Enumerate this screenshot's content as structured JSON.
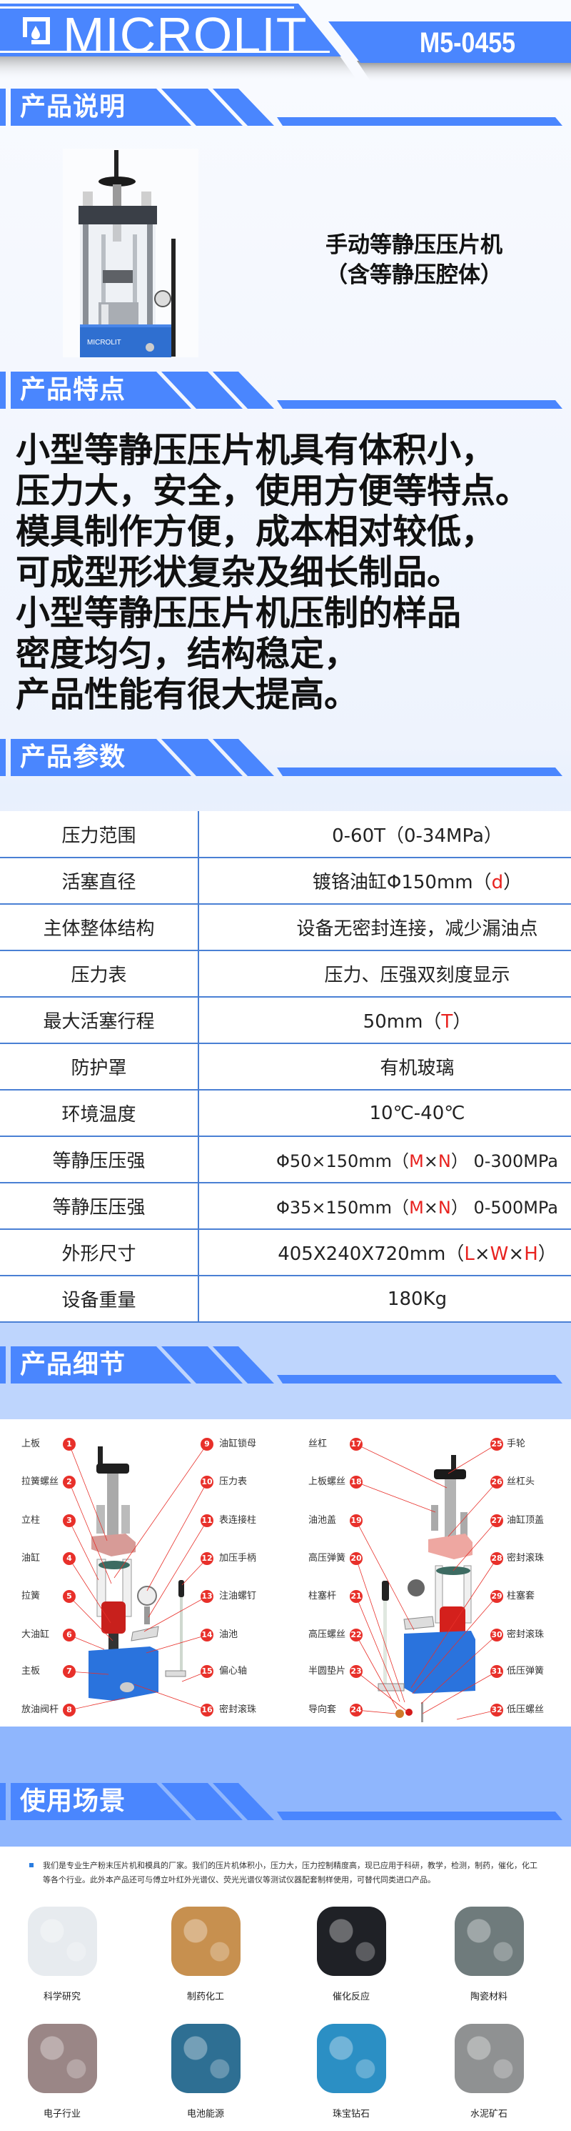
{
  "header": {
    "brand": "MICROLIT",
    "model": "M5-0455"
  },
  "colors": {
    "accent": "#4a86fe",
    "band_light": "#bed5fd",
    "band_usage": "#8fb6fd",
    "highlight": "#e8221f"
  },
  "sections": {
    "description": "产品说明",
    "features": "产品特点",
    "parameters": "产品参数",
    "details": "产品细节",
    "usage": "使用场景"
  },
  "description": {
    "product_logo": "MICROLIT",
    "title_line1": "手动等静压压片机",
    "title_line2": "（含等静压腔体）"
  },
  "features": [
    "小型等静压压片机具有体积小，",
    "压力大，安全，使用方便等特点。",
    "模具制作方便，成本相对较低，",
    "可成型形状复杂及细长制品。",
    "小型等静压压片机压制的样品",
    "密度均匀，结构稳定，",
    "产品性能有很大提高。"
  ],
  "parameters": [
    {
      "label": "压力范围",
      "value": [
        {
          "t": "0-60T（0-34MPa）"
        }
      ]
    },
    {
      "label": "活塞直径",
      "value": [
        {
          "t": "镀铬油缸Φ150mm（"
        },
        {
          "t": "d",
          "red": true
        },
        {
          "t": "）"
        }
      ]
    },
    {
      "label": "主体整体结构",
      "value": [
        {
          "t": "设备无密封连接，减少漏油点"
        }
      ]
    },
    {
      "label": "压力表",
      "value": [
        {
          "t": "压力、压强双刻度显示"
        }
      ]
    },
    {
      "label": "最大活塞行程",
      "value": [
        {
          "t": "50mm（"
        },
        {
          "t": "T",
          "red": true
        },
        {
          "t": "）"
        }
      ]
    },
    {
      "label": "防护罩",
      "value": [
        {
          "t": "有机玻璃"
        }
      ]
    },
    {
      "label": "环境温度",
      "value": [
        {
          "t": "10℃-40℃"
        }
      ]
    },
    {
      "label": "等静压压强",
      "value": [
        {
          "t": "Φ50×150mm（"
        },
        {
          "t": "M",
          "red": true
        },
        {
          "t": "×"
        },
        {
          "t": "N",
          "red": true
        },
        {
          "t": "）  0-300MPa"
        }
      ]
    },
    {
      "label": "等静压压强",
      "value": [
        {
          "t": "Φ35×150mm（"
        },
        {
          "t": "M",
          "red": true
        },
        {
          "t": "×"
        },
        {
          "t": "N",
          "red": true
        },
        {
          "t": "）  0-500MPa"
        }
      ]
    },
    {
      "label": "外形尺寸",
      "value": [
        {
          "t": "405X240X720mm（"
        },
        {
          "t": "L",
          "red": true
        },
        {
          "t": "×"
        },
        {
          "t": "W",
          "red": true
        },
        {
          "t": "×"
        },
        {
          "t": "H",
          "red": true
        },
        {
          "t": "）"
        }
      ]
    },
    {
      "label": "设备重量",
      "value": [
        {
          "t": "180Kg"
        }
      ]
    }
  ],
  "parts_left": [
    {
      "n": "1",
      "name": "上板"
    },
    {
      "n": "2",
      "name": "拉簧螺丝"
    },
    {
      "n": "3",
      "name": "立柱"
    },
    {
      "n": "4",
      "name": "油缸"
    },
    {
      "n": "5",
      "name": "拉簧"
    },
    {
      "n": "6",
      "name": "大油缸"
    },
    {
      "n": "7",
      "name": "主板"
    },
    {
      "n": "8",
      "name": "放油阀杆"
    },
    {
      "n": "9",
      "name": "油缸锁母"
    },
    {
      "n": "10",
      "name": "压力表"
    },
    {
      "n": "11",
      "name": "表连接柱"
    },
    {
      "n": "12",
      "name": "加压手柄"
    },
    {
      "n": "13",
      "name": "注油螺钉"
    },
    {
      "n": "14",
      "name": "油池"
    },
    {
      "n": "15",
      "name": "偏心轴"
    },
    {
      "n": "16",
      "name": "密封滚珠"
    }
  ],
  "parts_right": [
    {
      "n": "17",
      "name": "丝杠"
    },
    {
      "n": "18",
      "name": "上板螺丝"
    },
    {
      "n": "19",
      "name": "油池盖"
    },
    {
      "n": "20",
      "name": "高压弹簧"
    },
    {
      "n": "21",
      "name": "柱塞杆"
    },
    {
      "n": "22",
      "name": "高压螺丝"
    },
    {
      "n": "23",
      "name": "半圆垫片"
    },
    {
      "n": "24",
      "name": "导向套"
    },
    {
      "n": "25",
      "name": "手轮"
    },
    {
      "n": "26",
      "name": "丝杠头"
    },
    {
      "n": "27",
      "name": "油缸顶盖"
    },
    {
      "n": "28",
      "name": "密封滚珠"
    },
    {
      "n": "29",
      "name": "柱塞套"
    },
    {
      "n": "30",
      "name": "密封滚珠"
    },
    {
      "n": "31",
      "name": "低压弹簧"
    },
    {
      "n": "32",
      "name": "低压螺丝"
    }
  ],
  "usage": {
    "intro": "我们是专业生产粉末压片机和模具的厂家。我们的压片机体积小，压力大，压力控制精度高，现已应用于科研，教学，检测，制药，催化，化工等各个行业。此外本产品还可与傅立叶红外光谱仪、荧光光谱仪等测试仪器配套制样使用，可替代同类进口产品。",
    "scenes": [
      {
        "label": "科学研究",
        "tone": "#e7ebef"
      },
      {
        "label": "制药化工",
        "tone": "#c7904f"
      },
      {
        "label": "催化反应",
        "tone": "#1f2126"
      },
      {
        "label": "陶瓷材料",
        "tone": "#6f7b7c"
      },
      {
        "label": "电子行业",
        "tone": "#9a8686"
      },
      {
        "label": "电池能源",
        "tone": "#2e6f93"
      },
      {
        "label": "珠宝钻石",
        "tone": "#2b8fc4"
      },
      {
        "label": "水泥矿石",
        "tone": "#8f9192"
      }
    ]
  }
}
